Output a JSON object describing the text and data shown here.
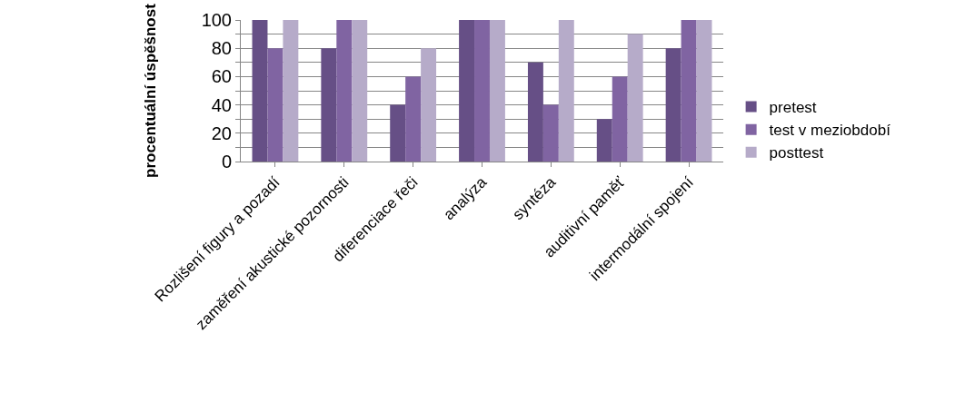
{
  "chart_data": {
    "type": "bar",
    "ylabel": "procentuální úspěšnost",
    "categories": [
      "Rozlišení figury a pozadí",
      "zaměření akustické pozornosti",
      "diferenciace řeči",
      "analýza",
      "syntéza",
      "auditivní paměť",
      "intermodální spojení"
    ],
    "series": [
      {
        "name": "pretest",
        "color": "#664f86",
        "values": [
          100,
          80,
          40,
          100,
          70,
          30,
          80
        ]
      },
      {
        "name": "test v meziobdobí",
        "color": "#8064a2",
        "values": [
          80,
          100,
          60,
          100,
          40,
          60,
          100
        ]
      },
      {
        "name": "posttest",
        "color": "#b6abc9",
        "values": [
          100,
          100,
          80,
          100,
          100,
          90,
          100
        ]
      }
    ],
    "ylim": [
      0,
      100
    ],
    "yticks": [
      0,
      {
        "value": 10,
        "label": null
      },
      20,
      {
        "value": 30,
        "label": null
      },
      40,
      {
        "value": 50,
        "label": null
      },
      60,
      {
        "value": 70,
        "label": null
      },
      80,
      {
        "value": 90,
        "label": null
      },
      100
    ],
    "grid": "y",
    "legend": "right"
  }
}
